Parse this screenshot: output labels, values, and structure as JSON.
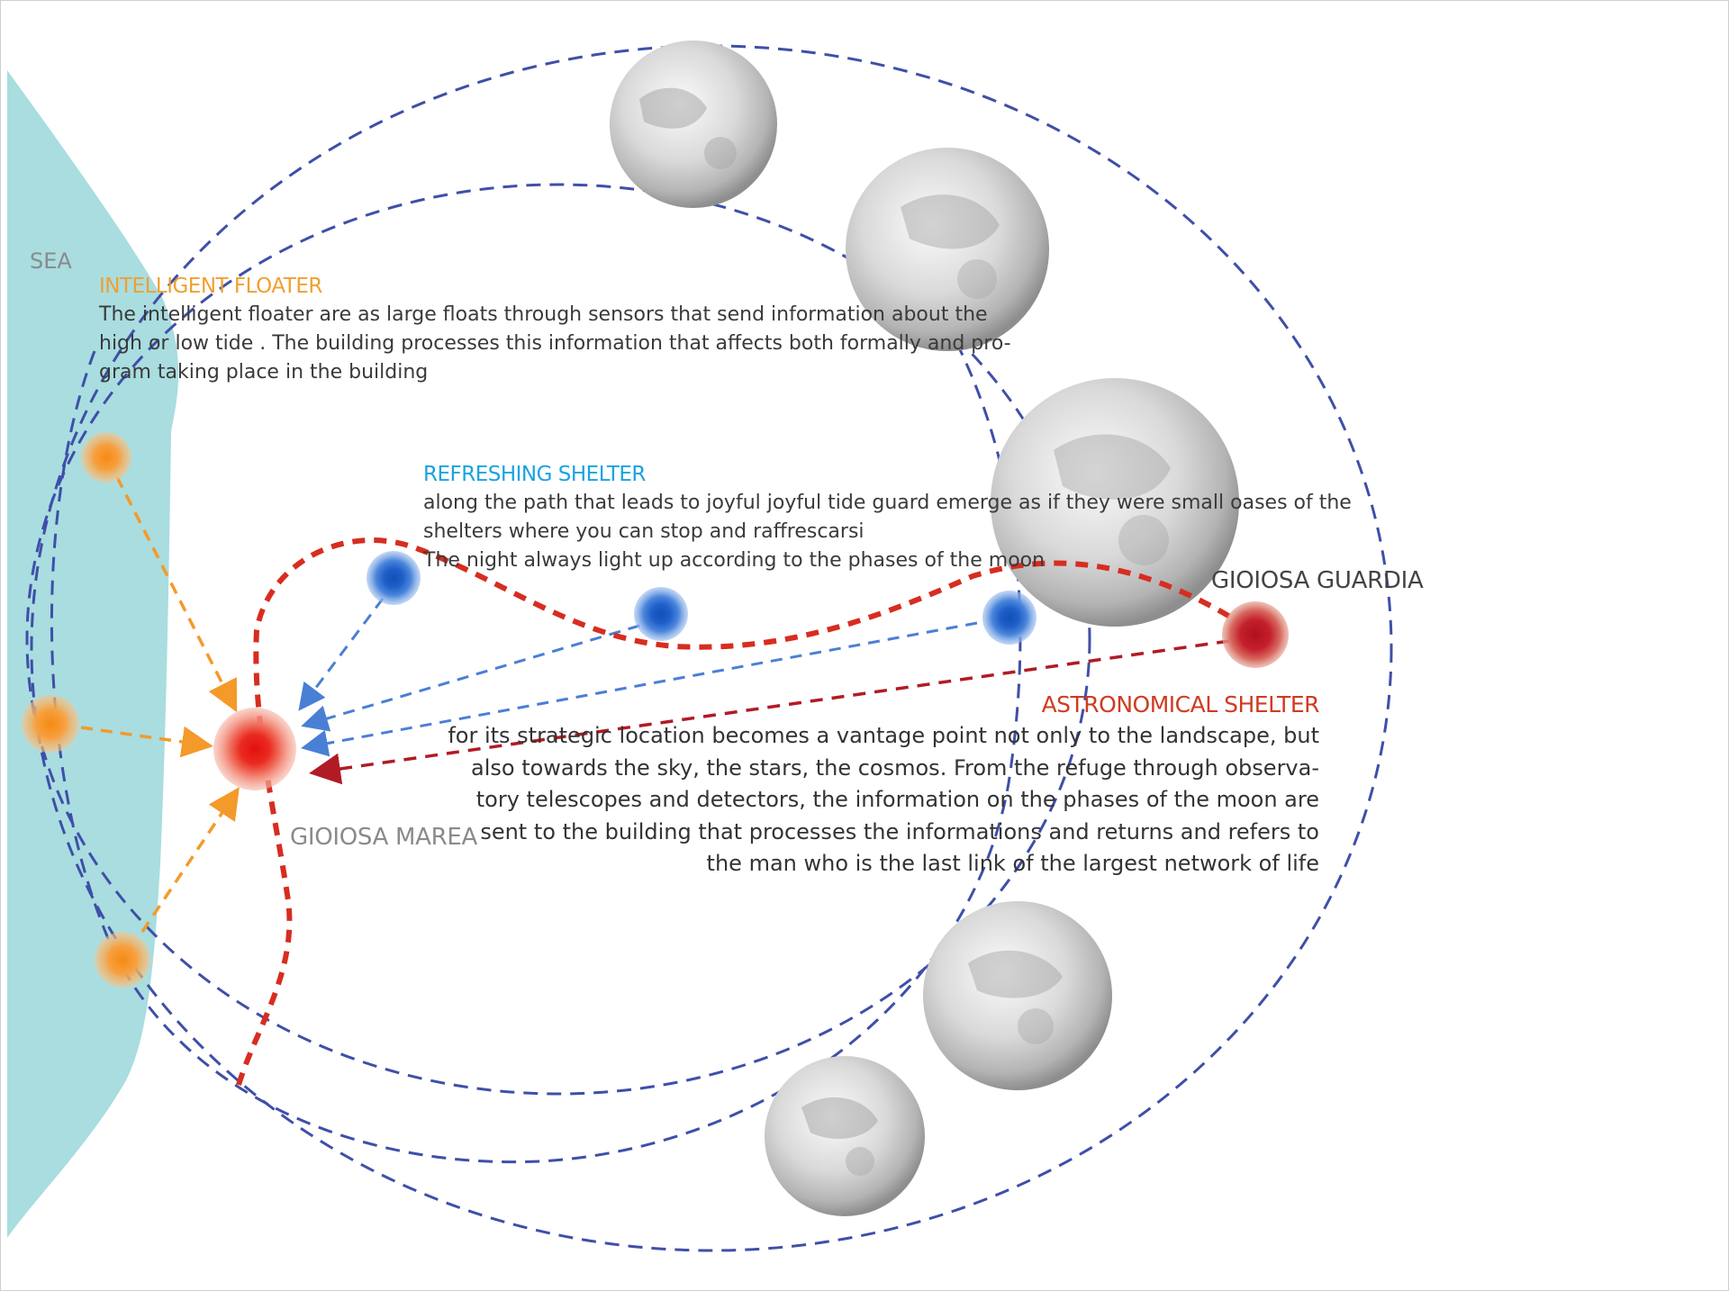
{
  "labels": {
    "sea": "SEA",
    "intelligent_floater_title": "INTELLIGENT FLOATER",
    "intelligent_floater_text": [
      "The intelligent floater are as large floats through sensors that send information about the",
      "high or low tide . The building processes this information that affects both formally and pro-",
      "gram taking place in the building"
    ],
    "refreshing_shelter_title": "REFRESHING SHELTER",
    "refreshing_shelter_text": [
      "along the path that leads to joyful joyful tide guard emerge as if they were small oases of the",
      "shelters where you can stop and raffrescarsi",
      "The night always light up according to the phases of the moon"
    ],
    "gioiosa_guardia": "GIOIOSA GUARDIA",
    "astronomical_shelter_title": "ASTRONOMICAL SHELTER",
    "astronomical_shelter_text": [
      "for its strategic location becomes a vantage point not only to the landscape, but",
      "also towards the sky, the stars, the cosmos. From the refuge through observa-",
      "tory telescopes and detectors, the information on the phases of the moon are",
      "sent to the building that processes the informations and returns and refers to",
      "the man who is the last link of the largest network of life"
    ],
    "gioiosa_marea": "GIOIOSA MAREA"
  },
  "colors": {
    "sea": "#a9dde0",
    "orbit": "#3f4fa8",
    "floater": "#f39a2b",
    "shelter": "#2a6fd0",
    "main_node": "#e3231f",
    "guardia_node": "#c0202b",
    "path": "#d72d20",
    "orange_text": "#f0a030",
    "blue_text": "#1aa3e0",
    "red_text": "#cf3b22",
    "gray_text": "#8a8a8a"
  },
  "icons": {
    "moon": "moon-icon",
    "floater": "floater-node-icon",
    "shelter": "shelter-node-icon"
  }
}
